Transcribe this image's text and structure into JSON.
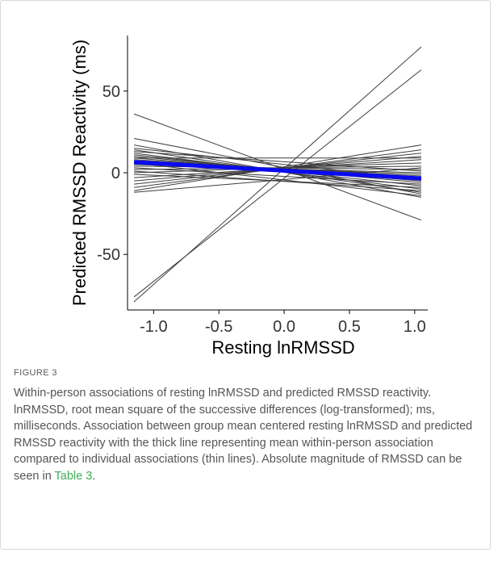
{
  "chart_data": {
    "type": "line",
    "xlabel": "Resting lnRMSSD",
    "ylabel": "Predicted RMSSD Reactivity (ms)",
    "x_ticks": [
      -1.0,
      -0.5,
      0.0,
      0.5,
      1.0
    ],
    "x_tick_labels": [
      "-1.0",
      "-0.5",
      "0.0",
      "0.5",
      "1.0"
    ],
    "y_ticks": [
      -50,
      0,
      50
    ],
    "y_tick_labels": [
      "-50",
      "0",
      "50"
    ],
    "xlim": [
      -1.2,
      1.1
    ],
    "ylim": [
      -84,
      84
    ],
    "x_range": [
      -1.15,
      1.05
    ],
    "grid": false,
    "legend": "none",
    "mean_line": {
      "y_start": 6.5,
      "y_end": -3.5,
      "color": "#0a0af0"
    },
    "individual_line_color": "#3c3c3c",
    "series": [
      {
        "y_start": -79,
        "y_end": 77
      },
      {
        "y_start": -76,
        "y_end": 63
      },
      {
        "y_start": 36,
        "y_end": -29
      },
      {
        "y_start": 21,
        "y_end": -13
      },
      {
        "y_start": 17,
        "y_end": -15
      },
      {
        "y_start": 14,
        "y_end": -12
      },
      {
        "y_start": 12,
        "y_end": -10
      },
      {
        "y_start": 11,
        "y_end": -8
      },
      {
        "y_start": 10,
        "y_end": -6
      },
      {
        "y_start": 9,
        "y_end": -5
      },
      {
        "y_start": 8,
        "y_end": -3
      },
      {
        "y_start": 7,
        "y_end": -2
      },
      {
        "y_start": 6,
        "y_end": -1
      },
      {
        "y_start": 5,
        "y_end": 0
      },
      {
        "y_start": 4,
        "y_end": 2
      },
      {
        "y_start": 3,
        "y_end": -7
      },
      {
        "y_start": 2,
        "y_end": 4
      },
      {
        "y_start": 1,
        "y_end": -11
      },
      {
        "y_start": 0,
        "y_end": 6
      },
      {
        "y_start": -1,
        "y_end": -9
      },
      {
        "y_start": -3,
        "y_end": 8
      },
      {
        "y_start": -5,
        "y_end": 10
      },
      {
        "y_start": -7,
        "y_end": 12
      },
      {
        "y_start": -9,
        "y_end": 14
      },
      {
        "y_start": -11,
        "y_end": 17
      },
      {
        "y_start": -12,
        "y_end": 3
      },
      {
        "y_start": 15,
        "y_end": -4
      },
      {
        "y_start": 13,
        "y_end": 1
      },
      {
        "y_start": 9,
        "y_end": 9
      },
      {
        "y_start": 6,
        "y_end": -14
      }
    ]
  },
  "caption": {
    "figure_label": "FIGURE 3",
    "text": "Within-person associations of resting lnRMSSD and predicted RMSSD reactivity. lnRMSSD, root mean square of the successive differences (log-transformed); ms, milliseconds. Association between group mean centered resting lnRMSSD and predicted RMSSD reactivity with the thick line representing mean within-person association compared to individual associations (thin lines). Absolute magnitude of RMSSD can be seen in",
    "link": "Table 3",
    "end": "."
  }
}
